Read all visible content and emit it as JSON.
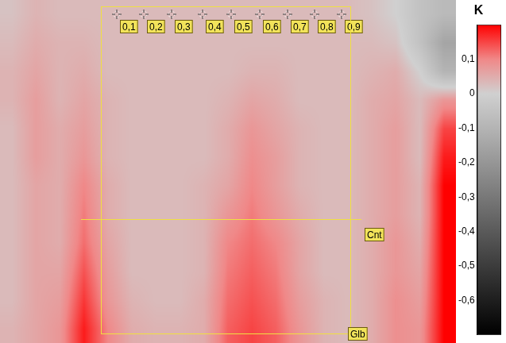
{
  "chart_data": {
    "type": "heatmap",
    "cells": [
      [
        0.02,
        0.04,
        0.03,
        0.03,
        0.03,
        0.03,
        0.03,
        0.03,
        0.03,
        0.03,
        0.03,
        0.03,
        0.03,
        0.03,
        0.03,
        0.02,
        0.0,
        -0.05,
        -0.08
      ],
      [
        0.03,
        0.05,
        0.04,
        0.04,
        0.03,
        0.03,
        0.03,
        0.03,
        0.03,
        0.03,
        0.03,
        0.03,
        0.03,
        0.03,
        0.03,
        0.03,
        0.02,
        -0.05,
        -0.15
      ],
      [
        0.04,
        0.06,
        0.04,
        0.05,
        0.03,
        0.03,
        0.03,
        0.03,
        0.03,
        0.03,
        0.04,
        0.04,
        0.03,
        0.03,
        0.03,
        0.04,
        0.05,
        0.0,
        -0.1
      ],
      [
        0.04,
        0.07,
        0.04,
        0.06,
        0.04,
        0.03,
        0.03,
        0.03,
        0.03,
        0.04,
        0.06,
        0.05,
        0.03,
        0.03,
        0.03,
        0.05,
        0.06,
        0.03,
        0.08
      ],
      [
        0.03,
        0.07,
        0.05,
        0.07,
        0.04,
        0.03,
        0.03,
        0.03,
        0.03,
        0.05,
        0.08,
        0.06,
        0.04,
        0.03,
        0.03,
        0.05,
        0.07,
        0.03,
        0.15
      ],
      [
        0.03,
        0.07,
        0.05,
        0.08,
        0.04,
        0.03,
        0.03,
        0.03,
        0.03,
        0.05,
        0.09,
        0.07,
        0.04,
        0.03,
        0.03,
        0.05,
        0.07,
        0.03,
        0.18
      ],
      [
        0.03,
        0.06,
        0.05,
        0.1,
        0.05,
        0.03,
        0.03,
        0.03,
        0.04,
        0.06,
        0.1,
        0.07,
        0.04,
        0.03,
        0.03,
        0.05,
        0.07,
        0.04,
        0.2
      ],
      [
        0.03,
        0.06,
        0.05,
        0.11,
        0.05,
        0.03,
        0.03,
        0.03,
        0.04,
        0.08,
        0.11,
        0.08,
        0.05,
        0.03,
        0.03,
        0.05,
        0.07,
        0.04,
        0.2
      ],
      [
        0.03,
        0.06,
        0.05,
        0.12,
        0.06,
        0.03,
        0.03,
        0.03,
        0.04,
        0.1,
        0.12,
        0.1,
        0.06,
        0.03,
        0.03,
        0.05,
        0.08,
        0.05,
        0.2
      ],
      [
        0.03,
        0.06,
        0.06,
        0.14,
        0.07,
        0.03,
        0.03,
        0.03,
        0.04,
        0.11,
        0.13,
        0.11,
        0.06,
        0.03,
        0.03,
        0.05,
        0.08,
        0.06,
        0.2
      ],
      [
        0.03,
        0.06,
        0.07,
        0.16,
        0.08,
        0.04,
        0.03,
        0.03,
        0.05,
        0.12,
        0.14,
        0.12,
        0.07,
        0.04,
        0.03,
        0.05,
        0.09,
        0.07,
        0.2
      ],
      [
        0.04,
        0.06,
        0.08,
        0.18,
        0.1,
        0.05,
        0.04,
        0.04,
        0.05,
        0.13,
        0.15,
        0.13,
        0.08,
        0.04,
        0.03,
        0.05,
        0.09,
        0.08,
        0.2
      ]
    ],
    "colorbar": {
      "title": "K",
      "range": [
        -0.7,
        0.2
      ],
      "ticks": [
        {
          "value": 0.1,
          "label": "0,1"
        },
        0,
        {
          "value": -0.1,
          "label": "-0,1"
        },
        {
          "value": -0.2,
          "label": "-0,2"
        },
        {
          "value": -0.3,
          "label": "-0,3"
        },
        {
          "value": -0.4,
          "label": "-0,4"
        },
        {
          "value": -0.5,
          "label": "-0,5"
        },
        {
          "value": -0.6,
          "label": "-0,6"
        }
      ]
    },
    "colors": [
      "#000000",
      "#1e1e1e",
      "#3c3c3c",
      "#5a5a5a",
      "#787878",
      "#969696",
      "#b4b4b4",
      "#d0d0d0",
      "#f08888",
      "#ff0000"
    ],
    "annotations": [
      {
        "type": "point",
        "label": "0,1"
      },
      {
        "type": "point",
        "label": "0,2"
      },
      {
        "type": "point",
        "label": "0,3"
      },
      {
        "type": "point",
        "label": "0,4"
      },
      {
        "type": "point",
        "label": "0,5"
      },
      {
        "type": "point",
        "label": "0,6"
      },
      {
        "type": "point",
        "label": "0,7"
      },
      {
        "type": "point",
        "label": "0,8"
      },
      {
        "type": "point",
        "label": "0,9"
      },
      {
        "type": "rect",
        "label": "Glb"
      },
      {
        "type": "line",
        "label": "Cnt"
      }
    ]
  }
}
